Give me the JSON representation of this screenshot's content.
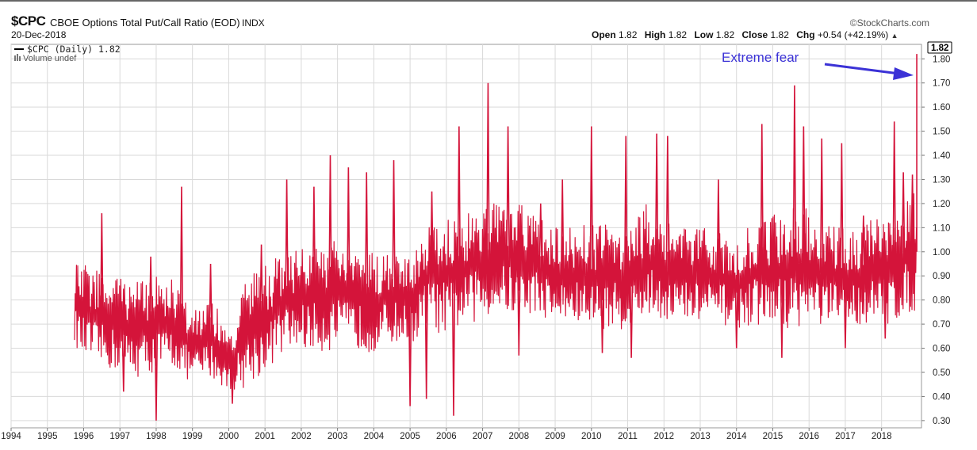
{
  "header": {
    "symbol": "$CPC",
    "description": "CBOE Options Total Put/Call Ratio (EOD)",
    "exchange": "INDX",
    "date": "20-Dec-2018",
    "brand": "©StockCharts.com",
    "open_label": "Open",
    "open": "1.82",
    "high_label": "High",
    "high": "1.82",
    "low_label": "Low",
    "low": "1.82",
    "close_label": "Close",
    "close": "1.82",
    "chg_label": "Chg",
    "chg": "+0.54 (+42.19%)",
    "chg_arrow": "▲"
  },
  "legend": {
    "series": "$CPC (Daily) 1.82",
    "volume": "Volume undef"
  },
  "annotation": {
    "text": "Extreme fear"
  },
  "colors": {
    "line": "#d4143a",
    "annotation": "#3b32d6",
    "grid": "#d9d9d9"
  },
  "chart_data": {
    "type": "line",
    "title": "$CPC CBOE Options Total Put/Call Ratio (EOD)",
    "xlabel": "",
    "ylabel": "",
    "xlim": [
      1994.0,
      2019.1
    ],
    "ylim": [
      0.27,
      1.86
    ],
    "x_ticks": [
      "1994",
      "1995",
      "1996",
      "1997",
      "1998",
      "1999",
      "2000",
      "2001",
      "2002",
      "2003",
      "2004",
      "2005",
      "2006",
      "2007",
      "2008",
      "2009",
      "2010",
      "2011",
      "2012",
      "2013",
      "2014",
      "2015",
      "2016",
      "2017",
      "2018"
    ],
    "y_ticks": [
      "0.30",
      "0.40",
      "0.50",
      "0.60",
      "0.70",
      "0.80",
      "0.90",
      "1.00",
      "1.10",
      "1.20",
      "1.30",
      "1.40",
      "1.50",
      "1.60",
      "1.70",
      "1.80"
    ],
    "grid": true,
    "legend_position": "top-left",
    "last_value": "1.82",
    "series": [
      {
        "name": "$CPC (Daily)",
        "band": {
          "x": [
            1995.75,
            1996.0,
            1996.5,
            1997.0,
            1997.5,
            1998.0,
            1998.5,
            1999.0,
            1999.5,
            2000.0,
            2000.5,
            2001.0,
            2001.5,
            2002.0,
            2002.5,
            2003.0,
            2003.5,
            2004.0,
            2004.5,
            2005.0,
            2005.5,
            2006.0,
            2006.5,
            2007.0,
            2007.5,
            2008.0,
            2008.5,
            2009.0,
            2009.5,
            2010.0,
            2010.5,
            2011.0,
            2011.5,
            2012.0,
            2012.5,
            2013.0,
            2013.5,
            2014.0,
            2014.5,
            2015.0,
            2015.5,
            2016.0,
            2016.5,
            2017.0,
            2017.5,
            2018.0,
            2018.5,
            2018.95
          ],
          "low": [
            0.62,
            0.55,
            0.52,
            0.5,
            0.48,
            0.5,
            0.52,
            0.45,
            0.48,
            0.42,
            0.44,
            0.5,
            0.58,
            0.6,
            0.58,
            0.6,
            0.6,
            0.58,
            0.62,
            0.6,
            0.68,
            0.65,
            0.7,
            0.72,
            0.75,
            0.72,
            0.75,
            0.7,
            0.7,
            0.68,
            0.68,
            0.68,
            0.72,
            0.72,
            0.7,
            0.7,
            0.7,
            0.68,
            0.7,
            0.68,
            0.68,
            0.7,
            0.68,
            0.68,
            0.7,
            0.68,
            0.72,
            0.75
          ],
          "high": [
            0.95,
            0.95,
            0.92,
            0.9,
            0.88,
            0.9,
            0.88,
            0.75,
            0.82,
            0.65,
            0.9,
            0.95,
            1.0,
            1.02,
            1.05,
            1.05,
            1.02,
            1.0,
            1.02,
            1.0,
            1.15,
            1.15,
            1.15,
            1.2,
            1.2,
            1.2,
            1.15,
            1.1,
            1.1,
            1.12,
            1.12,
            1.1,
            1.2,
            1.15,
            1.1,
            1.1,
            1.08,
            1.08,
            1.12,
            1.15,
            1.2,
            1.18,
            1.12,
            1.1,
            1.12,
            1.15,
            1.2,
            1.25
          ]
        },
        "spikes": [
          {
            "x": 1996.5,
            "y": 1.16
          },
          {
            "x": 1997.1,
            "y": 0.42
          },
          {
            "x": 1997.85,
            "y": 0.98
          },
          {
            "x": 1998.0,
            "y": 0.3
          },
          {
            "x": 1998.7,
            "y": 1.27
          },
          {
            "x": 1999.5,
            "y": 0.95
          },
          {
            "x": 2000.1,
            "y": 0.37
          },
          {
            "x": 2000.9,
            "y": 1.03
          },
          {
            "x": 2001.6,
            "y": 1.3
          },
          {
            "x": 2002.35,
            "y": 1.27
          },
          {
            "x": 2002.8,
            "y": 1.4
          },
          {
            "x": 2003.3,
            "y": 1.35
          },
          {
            "x": 2003.8,
            "y": 1.33
          },
          {
            "x": 2004.55,
            "y": 1.38
          },
          {
            "x": 2005.0,
            "y": 0.36
          },
          {
            "x": 2005.45,
            "y": 0.39
          },
          {
            "x": 2005.6,
            "y": 1.25
          },
          {
            "x": 2006.2,
            "y": 0.32
          },
          {
            "x": 2006.35,
            "y": 1.52
          },
          {
            "x": 2007.15,
            "y": 1.7
          },
          {
            "x": 2007.7,
            "y": 1.52
          },
          {
            "x": 2008.0,
            "y": 0.57
          },
          {
            "x": 2008.6,
            "y": 1.2
          },
          {
            "x": 2009.2,
            "y": 1.3
          },
          {
            "x": 2010.0,
            "y": 1.52
          },
          {
            "x": 2010.3,
            "y": 0.58
          },
          {
            "x": 2010.95,
            "y": 1.48
          },
          {
            "x": 2011.1,
            "y": 0.56
          },
          {
            "x": 2011.8,
            "y": 1.49
          },
          {
            "x": 2012.1,
            "y": 1.48
          },
          {
            "x": 2013.5,
            "y": 1.3
          },
          {
            "x": 2014.0,
            "y": 0.6
          },
          {
            "x": 2014.7,
            "y": 1.53
          },
          {
            "x": 2015.25,
            "y": 0.56
          },
          {
            "x": 2015.6,
            "y": 1.69
          },
          {
            "x": 2015.85,
            "y": 1.52
          },
          {
            "x": 2016.35,
            "y": 1.47
          },
          {
            "x": 2016.9,
            "y": 1.45
          },
          {
            "x": 2017.0,
            "y": 0.6
          },
          {
            "x": 2017.5,
            "y": 1.15
          },
          {
            "x": 2018.1,
            "y": 0.64
          },
          {
            "x": 2018.35,
            "y": 1.54
          },
          {
            "x": 2018.6,
            "y": 1.33
          },
          {
            "x": 2018.85,
            "y": 1.32
          }
        ],
        "last": {
          "x": 2018.97,
          "y": 1.82
        }
      }
    ]
  }
}
